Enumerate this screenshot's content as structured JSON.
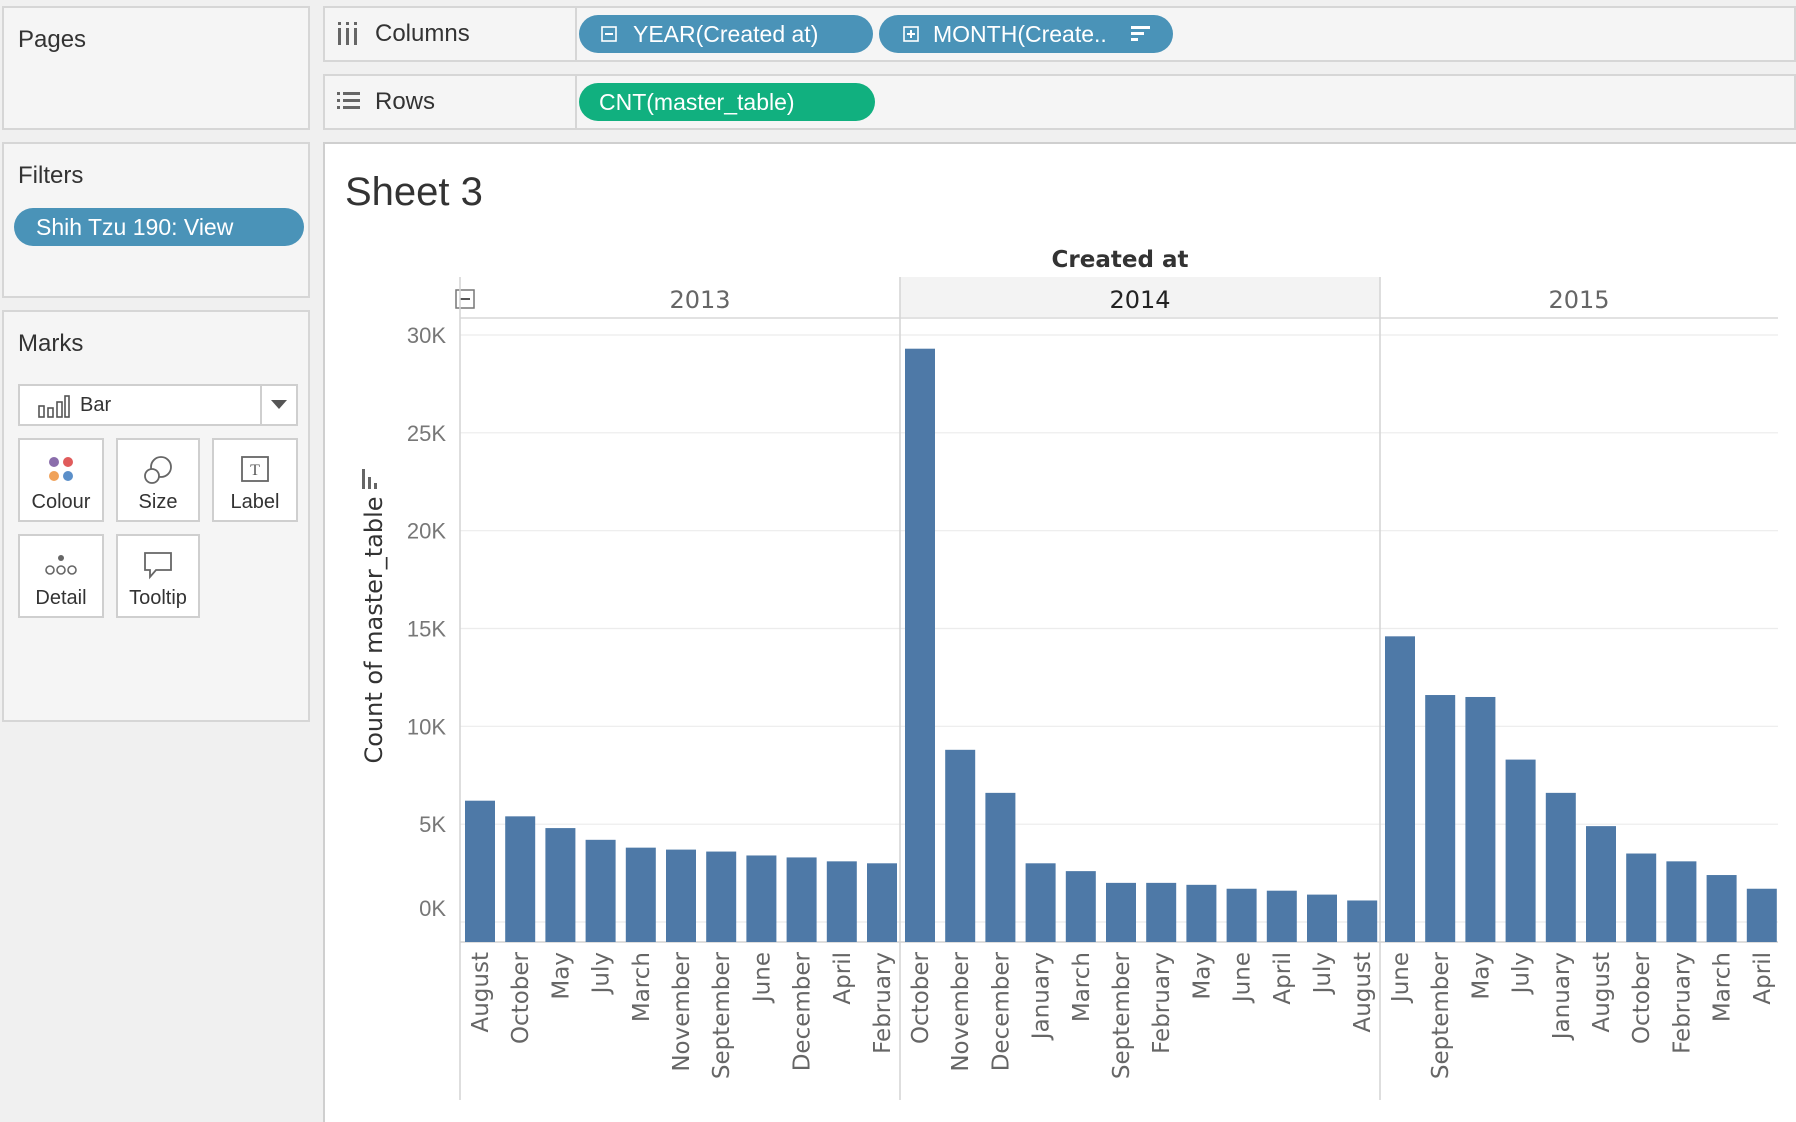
{
  "pages": {
    "title": "Pages"
  },
  "filters": {
    "title": "Filters",
    "pill": "Shih Tzu 190: View"
  },
  "marks": {
    "title": "Marks",
    "type": "Bar",
    "cards": [
      {
        "label": "Colour",
        "icon": "colour-icon"
      },
      {
        "label": "Size",
        "icon": "size-icon"
      },
      {
        "label": "Label",
        "icon": "label-icon"
      },
      {
        "label": "Detail",
        "icon": "detail-icon"
      },
      {
        "label": "Tooltip",
        "icon": "tooltip-icon"
      }
    ]
  },
  "shelves": {
    "columns_label": "Columns",
    "rows_label": "Rows",
    "columns_pills": [
      "YEAR(Created at)",
      "MONTH(Create.."
    ],
    "rows_pill": "CNT(master_table)"
  },
  "sheet": {
    "title": "Sheet 3"
  },
  "colors": {
    "bar": "#4e79a7",
    "pill_blue": "#4a93b8",
    "pill_green": "#11b07f"
  },
  "chart_data": {
    "type": "bar",
    "title": "Sheet 3",
    "header_title": "Created at",
    "ylabel": "Count of master_table",
    "ylim": [
      0,
      30000
    ],
    "yticks": [
      0,
      5000,
      10000,
      15000,
      20000,
      25000,
      30000
    ],
    "ytick_labels": [
      "0K",
      "5K",
      "10K",
      "15K",
      "20K",
      "25K",
      "30K"
    ],
    "panes": [
      {
        "year": "2013",
        "categories": [
          "August",
          "October",
          "May",
          "July",
          "March",
          "November",
          "September",
          "June",
          "December",
          "April",
          "February"
        ],
        "values": [
          6200,
          5400,
          4800,
          4200,
          3800,
          3700,
          3600,
          3400,
          3300,
          3100,
          3000
        ]
      },
      {
        "year": "2014",
        "categories": [
          "October",
          "November",
          "December",
          "January",
          "March",
          "September",
          "February",
          "May",
          "June",
          "April",
          "July",
          "August"
        ],
        "values": [
          29300,
          8800,
          6600,
          3000,
          2600,
          2000,
          2000,
          1900,
          1700,
          1600,
          1400,
          1100
        ]
      },
      {
        "year": "2015",
        "categories": [
          "June",
          "September",
          "May",
          "July",
          "January",
          "August",
          "October",
          "February",
          "March",
          "April"
        ],
        "values": [
          14600,
          11600,
          11500,
          8300,
          6600,
          4900,
          3500,
          3100,
          2400,
          1700
        ]
      }
    ]
  }
}
